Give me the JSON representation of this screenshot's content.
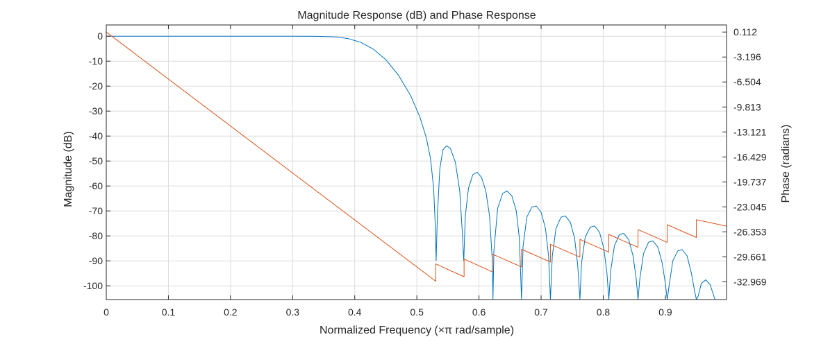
{
  "chart_data": {
    "type": "line",
    "title": "Magnitude Response (dB) and Phase Response",
    "xlabel": "Normalized Frequency (×π rad/sample)",
    "ylabel": "Magnitude (dB)",
    "ylabel_right": "Phase (radians)",
    "xlim": [
      0,
      0.9985
    ],
    "ylim": [
      -105.5,
      4.5
    ],
    "ylim_right": [
      -35.32,
      1.05
    ],
    "grid": true,
    "x_ticks": [
      0,
      0.1,
      0.2,
      0.3,
      0.4,
      0.5,
      0.6,
      0.7,
      0.8,
      0.9
    ],
    "x_tick_labels": [
      "0",
      "0.1",
      "0.2",
      "0.3",
      "0.4",
      "0.5",
      "0.6",
      "0.7",
      "0.8",
      "0.9"
    ],
    "y_ticks": [
      0,
      -10,
      -20,
      -30,
      -40,
      -50,
      -60,
      -70,
      -80,
      -90,
      -100
    ],
    "y_tick_labels": [
      "0",
      "-10",
      "-20",
      "-30",
      "-40",
      "-50",
      "-60",
      "-70",
      "-80",
      "-90",
      "-100"
    ],
    "y_right_ticks": [
      0.112,
      -3.196,
      -6.504,
      -9.813,
      -13.121,
      -16.429,
      -19.737,
      -23.045,
      -26.353,
      -29.661,
      -32.969
    ],
    "y_right_tick_labels": [
      "0.112",
      "-3.196",
      "-6.504",
      "-9.813",
      "-13.121",
      "-16.429",
      "-19.737",
      "-23.045",
      "-26.353",
      "-29.661",
      "-32.969"
    ],
    "series": [
      {
        "color": "#0072bd",
        "axis": "left",
        "points": [
          [
            0,
            0
          ],
          [
            0.05,
            0
          ],
          [
            0.1,
            0
          ],
          [
            0.15,
            0
          ],
          [
            0.2,
            0
          ],
          [
            0.25,
            0
          ],
          [
            0.3,
            0
          ],
          [
            0.34,
            -0.05
          ],
          [
            0.37,
            -0.3
          ],
          [
            0.39,
            -1
          ],
          [
            0.41,
            -2.5
          ],
          [
            0.43,
            -5.2
          ],
          [
            0.45,
            -9.4
          ],
          [
            0.47,
            -15.5
          ],
          [
            0.49,
            -23.8
          ],
          [
            0.505,
            -32.5
          ],
          [
            0.515,
            -40.5
          ],
          [
            0.522,
            -49
          ],
          [
            0.527,
            -61
          ],
          [
            0.5295,
            -75
          ],
          [
            0.531,
            -90
          ],
          [
            0.533,
            -72
          ],
          [
            0.537,
            -53
          ],
          [
            0.542,
            -45.5
          ],
          [
            0.548,
            -43.9
          ],
          [
            0.554,
            -45
          ],
          [
            0.562,
            -50.5
          ],
          [
            0.569,
            -62
          ],
          [
            0.573,
            -78
          ],
          [
            0.5755,
            -90
          ],
          [
            0.578,
            -72
          ],
          [
            0.583,
            -61
          ],
          [
            0.59,
            -55.5
          ],
          [
            0.597,
            -54.5
          ],
          [
            0.604,
            -56.5
          ],
          [
            0.611,
            -62
          ],
          [
            0.617,
            -72
          ],
          [
            0.6215,
            -90
          ],
          [
            0.6225,
            -105.5
          ],
          [
            0.624,
            -86
          ],
          [
            0.63,
            -69
          ],
          [
            0.638,
            -63
          ],
          [
            0.645,
            -62
          ],
          [
            0.653,
            -64
          ],
          [
            0.66,
            -70
          ],
          [
            0.665,
            -81
          ],
          [
            0.6685,
            -105.5
          ],
          [
            0.671,
            -84
          ],
          [
            0.677,
            -72.5
          ],
          [
            0.685,
            -68.5
          ],
          [
            0.692,
            -68
          ],
          [
            0.7,
            -70.5
          ],
          [
            0.707,
            -77
          ],
          [
            0.712,
            -88
          ],
          [
            0.715,
            -105.5
          ],
          [
            0.718,
            -88
          ],
          [
            0.724,
            -77
          ],
          [
            0.732,
            -72.5
          ],
          [
            0.739,
            -72
          ],
          [
            0.747,
            -74.5
          ],
          [
            0.754,
            -81
          ],
          [
            0.759,
            -92
          ],
          [
            0.7625,
            -105.5
          ],
          [
            0.765,
            -91
          ],
          [
            0.771,
            -80.5
          ],
          [
            0.779,
            -76.5
          ],
          [
            0.786,
            -76
          ],
          [
            0.794,
            -78.5
          ],
          [
            0.801,
            -85
          ],
          [
            0.806,
            -95
          ],
          [
            0.809,
            -105.5
          ],
          [
            0.812,
            -94
          ],
          [
            0.818,
            -84
          ],
          [
            0.826,
            -79.5
          ],
          [
            0.833,
            -79
          ],
          [
            0.841,
            -81.5
          ],
          [
            0.848,
            -88
          ],
          [
            0.853,
            -97
          ],
          [
            0.856,
            -105.5
          ],
          [
            0.859,
            -97
          ],
          [
            0.865,
            -87
          ],
          [
            0.873,
            -82.5
          ],
          [
            0.88,
            -82
          ],
          [
            0.888,
            -84.5
          ],
          [
            0.895,
            -91
          ],
          [
            0.9,
            -99
          ],
          [
            0.903,
            -105.5
          ],
          [
            0.906,
            -100
          ],
          [
            0.912,
            -90
          ],
          [
            0.92,
            -86
          ],
          [
            0.927,
            -85.5
          ],
          [
            0.935,
            -88
          ],
          [
            0.942,
            -95
          ],
          [
            0.947,
            -102
          ],
          [
            0.95,
            -105.5
          ],
          [
            0.953,
            -104
          ],
          [
            0.958,
            -99
          ],
          [
            0.965,
            -97.6
          ],
          [
            0.972,
            -99.5
          ],
          [
            0.978,
            -104
          ],
          [
            0.98,
            -105.5
          ]
        ]
      },
      {
        "color": "#d95319",
        "axis": "right",
        "points": [
          [
            0,
            0.112
          ],
          [
            0.5305,
            -32.9
          ],
          [
            0.5305,
            -30.6
          ],
          [
            0.576,
            -32.3
          ],
          [
            0.576,
            -29.95
          ],
          [
            0.6215,
            -31.65
          ],
          [
            0.6215,
            -29.3
          ],
          [
            0.6685,
            -31.0
          ],
          [
            0.6685,
            -28.65
          ],
          [
            0.715,
            -30.35
          ],
          [
            0.715,
            -28.0
          ],
          [
            0.7625,
            -29.7
          ],
          [
            0.7625,
            -27.35
          ],
          [
            0.809,
            -29.05
          ],
          [
            0.809,
            -26.7
          ],
          [
            0.856,
            -28.4
          ],
          [
            0.856,
            -26.05
          ],
          [
            0.903,
            -27.75
          ],
          [
            0.903,
            -25.4
          ],
          [
            0.95,
            -27.1
          ],
          [
            0.95,
            -24.75
          ],
          [
            0.9985,
            -25.6
          ]
        ]
      }
    ]
  }
}
